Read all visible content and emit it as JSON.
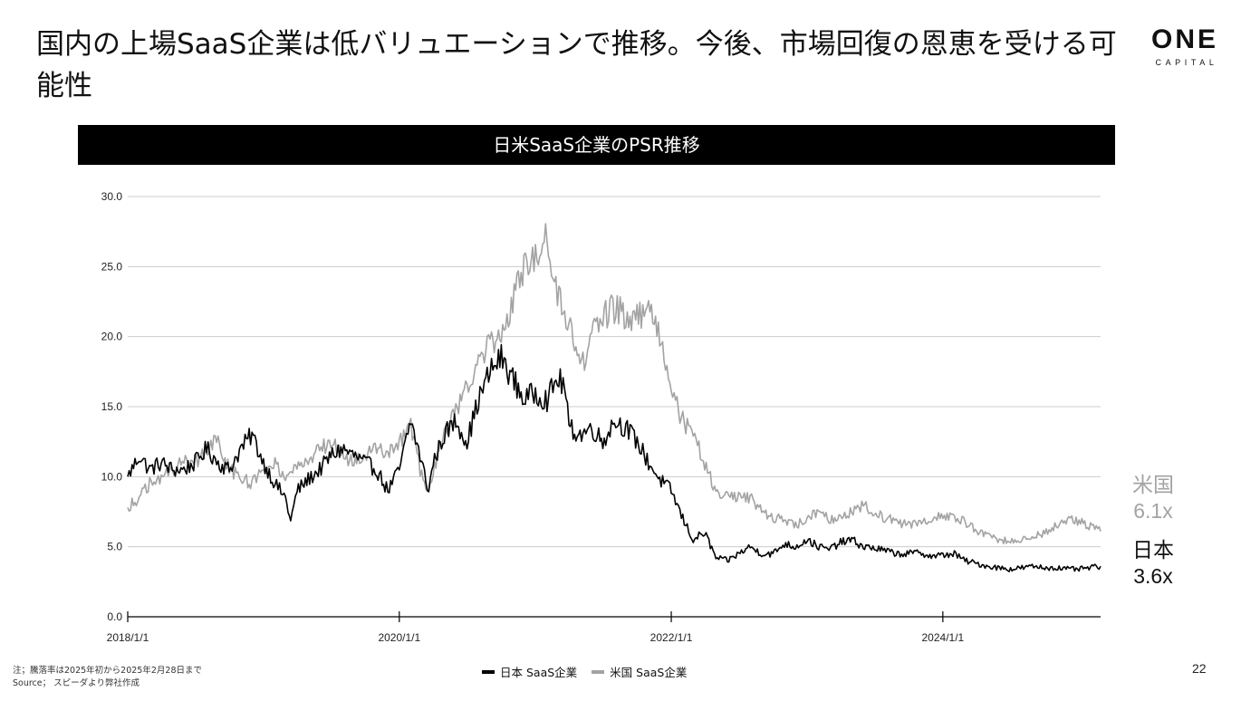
{
  "slide": {
    "title": "国内の上場SaaS企業は低バリュエーションで推移。今後、市場回復の恩恵を受ける可能性",
    "logo": {
      "name": "ONE",
      "subtitle": "CAPITAL"
    },
    "page_number": "22",
    "notes": [
      "注；騰落率は2025年初から2025年2月28日まで",
      "Source； スピーダより弊社作成"
    ],
    "end_labels": {
      "us": {
        "country": "米国",
        "value": "6.1x"
      },
      "jp": {
        "country": "日本",
        "value": "3.6x"
      }
    }
  },
  "colors": {
    "japan": "#000000",
    "us": "#a3a3a3",
    "grid": "#cccccc",
    "banner": "#000000"
  },
  "chart_data": {
    "type": "line",
    "title": "日米SaaS企業のPSR推移",
    "xlabel": "",
    "ylabel": "",
    "ylim": [
      0,
      30
    ],
    "yticks": [
      "0.0",
      "5.0",
      "10.0",
      "15.0",
      "20.0",
      "25.0",
      "30.0"
    ],
    "xlim": [
      "2018/1/1",
      "2025/2/28"
    ],
    "xticks": [
      "2018/1/1",
      "2020/1/1",
      "2022/1/1",
      "2024/1/1"
    ],
    "grid": true,
    "legend": "bottom-center",
    "series": [
      {
        "name": "日本 SaaS企業",
        "key": "japan",
        "points": [
          [
            "2018-01-01",
            10.0
          ],
          [
            "2018-02-01",
            11.5
          ],
          [
            "2018-03-01",
            10.5
          ],
          [
            "2018-04-01",
            11.0
          ],
          [
            "2018-05-01",
            10.5
          ],
          [
            "2018-06-01",
            10.5
          ],
          [
            "2018-07-01",
            11.0
          ],
          [
            "2018-08-01",
            12.0
          ],
          [
            "2018-09-01",
            11.0
          ],
          [
            "2018-10-01",
            10.5
          ],
          [
            "2018-11-01",
            12.0
          ],
          [
            "2018-12-01",
            13.0
          ],
          [
            "2019-01-01",
            11.0
          ],
          [
            "2019-02-01",
            9.5
          ],
          [
            "2019-03-01",
            8.5
          ],
          [
            "2019-03-15",
            6.8
          ],
          [
            "2019-04-01",
            9.0
          ],
          [
            "2019-05-01",
            9.8
          ],
          [
            "2019-06-01",
            10.5
          ],
          [
            "2019-07-01",
            11.5
          ],
          [
            "2019-08-01",
            12.0
          ],
          [
            "2019-09-01",
            11.5
          ],
          [
            "2019-10-01",
            11.0
          ],
          [
            "2019-11-01",
            10.5
          ],
          [
            "2019-12-01",
            9.0
          ],
          [
            "2020-01-01",
            10.5
          ],
          [
            "2020-02-01",
            14.0
          ],
          [
            "2020-03-01",
            11.0
          ],
          [
            "2020-03-20",
            9.0
          ],
          [
            "2020-04-01",
            11.0
          ],
          [
            "2020-05-01",
            13.0
          ],
          [
            "2020-06-01",
            14.0
          ],
          [
            "2020-07-01",
            12.5
          ],
          [
            "2020-08-01",
            15.5
          ],
          [
            "2020-09-01",
            17.5
          ],
          [
            "2020-10-01",
            18.5
          ],
          [
            "2020-11-01",
            17.0
          ],
          [
            "2020-12-01",
            15.5
          ],
          [
            "2021-01-01",
            16.0
          ],
          [
            "2021-02-01",
            15.5
          ],
          [
            "2021-03-01",
            17.0
          ],
          [
            "2021-03-20",
            16.5
          ],
          [
            "2021-04-01",
            13.5
          ],
          [
            "2021-05-01",
            13.0
          ],
          [
            "2021-06-01",
            13.5
          ],
          [
            "2021-07-01",
            12.5
          ],
          [
            "2021-08-01",
            14.0
          ],
          [
            "2021-09-01",
            13.5
          ],
          [
            "2021-10-01",
            12.5
          ],
          [
            "2021-11-01",
            11.0
          ],
          [
            "2021-12-01",
            9.8
          ],
          [
            "2022-01-01",
            9.0
          ],
          [
            "2022-02-01",
            7.0
          ],
          [
            "2022-03-01",
            5.5
          ],
          [
            "2022-04-01",
            6.0
          ],
          [
            "2022-05-01",
            4.2
          ],
          [
            "2022-06-01",
            4.0
          ],
          [
            "2022-07-01",
            4.5
          ],
          [
            "2022-08-01",
            5.0
          ],
          [
            "2022-09-01",
            4.5
          ],
          [
            "2022-10-01",
            4.5
          ],
          [
            "2022-11-01",
            5.2
          ],
          [
            "2022-12-01",
            5.0
          ],
          [
            "2023-01-01",
            5.5
          ],
          [
            "2023-02-01",
            5.0
          ],
          [
            "2023-03-01",
            4.8
          ],
          [
            "2023-04-01",
            5.3
          ],
          [
            "2023-05-01",
            5.5
          ],
          [
            "2023-06-01",
            5.0
          ],
          [
            "2023-07-01",
            4.9
          ],
          [
            "2023-08-01",
            4.7
          ],
          [
            "2023-09-01",
            4.5
          ],
          [
            "2023-10-01",
            4.5
          ],
          [
            "2023-11-01",
            4.6
          ],
          [
            "2023-12-01",
            4.3
          ],
          [
            "2024-01-01",
            4.4
          ],
          [
            "2024-02-01",
            4.5
          ],
          [
            "2024-03-01",
            4.0
          ],
          [
            "2024-04-01",
            3.8
          ],
          [
            "2024-05-01",
            3.6
          ],
          [
            "2024-06-01",
            3.5
          ],
          [
            "2024-07-01",
            3.4
          ],
          [
            "2024-08-01",
            3.5
          ],
          [
            "2024-09-01",
            3.6
          ],
          [
            "2024-10-01",
            3.5
          ],
          [
            "2024-11-01",
            3.5
          ],
          [
            "2024-12-01",
            3.4
          ],
          [
            "2025-01-01",
            3.4
          ],
          [
            "2025-02-28",
            3.6
          ]
        ]
      },
      {
        "name": "米国 SaaS企業",
        "key": "us",
        "points": [
          [
            "2018-01-01",
            7.8
          ],
          [
            "2018-02-01",
            8.5
          ],
          [
            "2018-03-01",
            9.5
          ],
          [
            "2018-04-01",
            10.0
          ],
          [
            "2018-05-01",
            10.5
          ],
          [
            "2018-06-01",
            11.5
          ],
          [
            "2018-07-01",
            11.0
          ],
          [
            "2018-08-01",
            12.0
          ],
          [
            "2018-09-01",
            12.5
          ],
          [
            "2018-10-01",
            10.5
          ],
          [
            "2018-11-01",
            10.0
          ],
          [
            "2018-12-01",
            9.5
          ],
          [
            "2019-01-01",
            10.5
          ],
          [
            "2019-02-01",
            11.0
          ],
          [
            "2019-03-01",
            10.0
          ],
          [
            "2019-04-01",
            10.5
          ],
          [
            "2019-05-01",
            11.0
          ],
          [
            "2019-06-01",
            12.0
          ],
          [
            "2019-07-01",
            12.5
          ],
          [
            "2019-08-01",
            11.5
          ],
          [
            "2019-09-01",
            11.0
          ],
          [
            "2019-10-01",
            11.5
          ],
          [
            "2019-11-01",
            12.0
          ],
          [
            "2019-12-01",
            11.5
          ],
          [
            "2020-01-01",
            12.5
          ],
          [
            "2020-02-01",
            13.5
          ],
          [
            "2020-03-01",
            10.0
          ],
          [
            "2020-03-20",
            8.8
          ],
          [
            "2020-04-01",
            10.5
          ],
          [
            "2020-05-01",
            13.0
          ],
          [
            "2020-06-01",
            14.5
          ],
          [
            "2020-07-01",
            16.5
          ],
          [
            "2020-08-01",
            18.0
          ],
          [
            "2020-09-01",
            19.5
          ],
          [
            "2020-10-01",
            20.0
          ],
          [
            "2020-11-01",
            22.5
          ],
          [
            "2020-12-01",
            25.0
          ],
          [
            "2021-01-01",
            26.0
          ],
          [
            "2021-02-01",
            27.3
          ],
          [
            "2021-03-01",
            23.0
          ],
          [
            "2021-04-01",
            21.0
          ],
          [
            "2021-05-01",
            17.5
          ],
          [
            "2021-06-01",
            20.0
          ],
          [
            "2021-07-01",
            21.5
          ],
          [
            "2021-08-01",
            22.0
          ],
          [
            "2021-09-01",
            21.5
          ],
          [
            "2021-10-01",
            21.5
          ],
          [
            "2021-11-01",
            22.0
          ],
          [
            "2021-12-01",
            20.0
          ],
          [
            "2022-01-01",
            16.0
          ],
          [
            "2022-02-01",
            14.0
          ],
          [
            "2022-03-01",
            13.0
          ],
          [
            "2022-04-01",
            11.0
          ],
          [
            "2022-05-01",
            9.0
          ],
          [
            "2022-06-01",
            8.5
          ],
          [
            "2022-07-01",
            8.5
          ],
          [
            "2022-08-01",
            8.5
          ],
          [
            "2022-09-01",
            7.5
          ],
          [
            "2022-10-01",
            7.0
          ],
          [
            "2022-11-01",
            7.0
          ],
          [
            "2022-12-01",
            6.5
          ],
          [
            "2023-01-01",
            7.0
          ],
          [
            "2023-02-01",
            7.5
          ],
          [
            "2023-03-01",
            7.0
          ],
          [
            "2023-04-01",
            7.0
          ],
          [
            "2023-05-01",
            7.5
          ],
          [
            "2023-06-01",
            8.0
          ],
          [
            "2023-07-01",
            7.5
          ],
          [
            "2023-08-01",
            7.0
          ],
          [
            "2023-09-01",
            6.8
          ],
          [
            "2023-10-01",
            6.5
          ],
          [
            "2023-11-01",
            6.8
          ],
          [
            "2023-12-01",
            7.0
          ],
          [
            "2024-01-01",
            7.2
          ],
          [
            "2024-02-01",
            7.0
          ],
          [
            "2024-03-01",
            6.8
          ],
          [
            "2024-04-01",
            6.2
          ],
          [
            "2024-05-01",
            5.8
          ],
          [
            "2024-06-01",
            5.5
          ],
          [
            "2024-07-01",
            5.4
          ],
          [
            "2024-08-01",
            5.5
          ],
          [
            "2024-09-01",
            5.8
          ],
          [
            "2024-10-01",
            6.0
          ],
          [
            "2024-11-01",
            6.5
          ],
          [
            "2024-12-01",
            7.0
          ],
          [
            "2025-01-01",
            6.8
          ],
          [
            "2025-02-28",
            6.1
          ]
        ]
      }
    ]
  }
}
